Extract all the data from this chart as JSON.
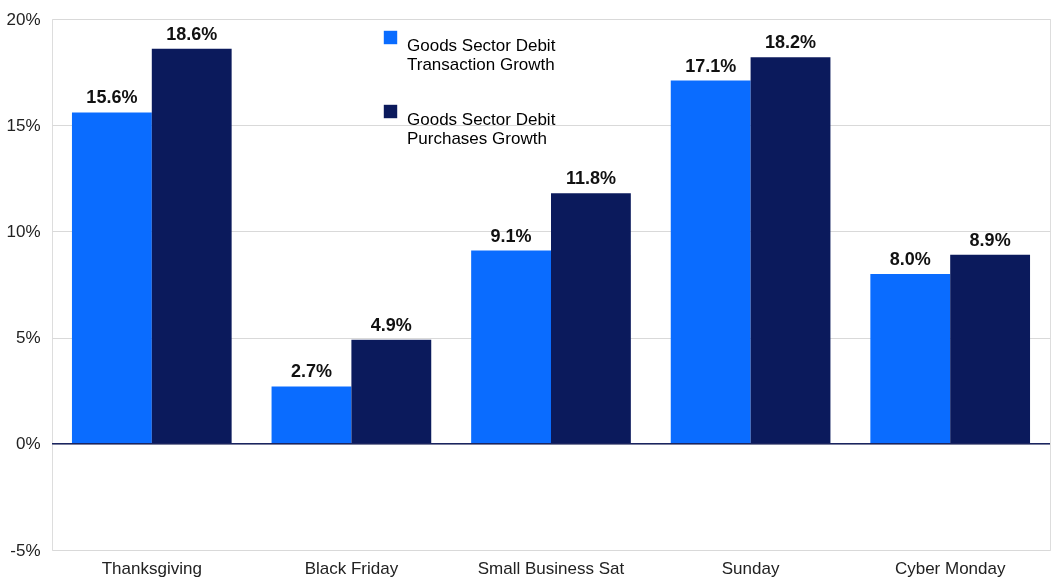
{
  "chart_data": {
    "type": "bar",
    "categories": [
      "Thanksgiving",
      "Black Friday",
      "Small Business Sat",
      "Sunday",
      "Cyber Monday"
    ],
    "series": [
      {
        "name": "Goods Sector Debit Transaction Growth",
        "color": "#0a6cff",
        "values": [
          15.6,
          2.7,
          9.1,
          17.1,
          8.0
        ],
        "value_labels": [
          "15.6%",
          "2.7%",
          "9.1%",
          "17.1%",
          "8.0%"
        ]
      },
      {
        "name": "Goods Sector Debit Purchases Growth",
        "color": "#0b1a5c",
        "values": [
          18.6,
          4.9,
          11.8,
          18.2,
          8.9
        ],
        "value_labels": [
          "18.6%",
          "4.9%",
          "11.8%",
          "18.2%",
          "8.9%"
        ]
      }
    ],
    "ylim": [
      -5,
      20
    ],
    "yticks": [
      {
        "value": -5,
        "label": "-5%"
      },
      {
        "value": 0,
        "label": "0%"
      },
      {
        "value": 5,
        "label": "5%"
      },
      {
        "value": 10,
        "label": "10%"
      },
      {
        "value": 15,
        "label": "15%"
      },
      {
        "value": 20,
        "label": "20%"
      }
    ],
    "grid": "y",
    "legend": "top",
    "ref_lines": [
      {
        "axis": "y",
        "value": 0,
        "color": "#1a2460"
      }
    ]
  }
}
